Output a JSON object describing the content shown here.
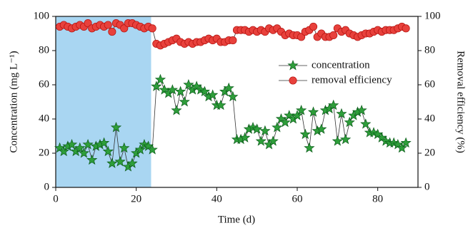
{
  "chart_data": {
    "type": "line",
    "x_label": "Time (d)",
    "y_label": "Concentration (mg L⁻¹)",
    "y2_label": "Removal efficiency (%)",
    "x": [
      1,
      2,
      3,
      4,
      5,
      6,
      7,
      8,
      9,
      10,
      11,
      12,
      13,
      14,
      15,
      16,
      17,
      18,
      19,
      20,
      21,
      22,
      23,
      24,
      25,
      26,
      27,
      28,
      29,
      30,
      31,
      32,
      33,
      34,
      35,
      36,
      37,
      38,
      39,
      40,
      41,
      42,
      43,
      44,
      45,
      46,
      47,
      48,
      49,
      50,
      51,
      52,
      53,
      54,
      55,
      56,
      57,
      58,
      59,
      60,
      61,
      62,
      63,
      64,
      65,
      66,
      67,
      68,
      69,
      70,
      71,
      72,
      73,
      74,
      75,
      76,
      77,
      78,
      79,
      80,
      81,
      82,
      83,
      84,
      85,
      86,
      87
    ],
    "series": [
      {
        "name": "concentration",
        "color": "#2e9e3a",
        "marker": "star",
        "values": [
          23,
          21,
          24,
          25,
          21,
          23,
          20,
          25,
          16,
          24,
          25,
          26,
          21,
          14,
          35,
          15,
          23,
          12,
          14,
          20,
          22,
          25,
          24,
          22,
          59,
          63,
          57,
          55,
          57,
          45,
          56,
          50,
          60,
          57,
          59,
          57,
          56,
          53,
          54,
          48,
          48,
          56,
          58,
          53,
          28,
          28,
          29,
          34,
          35,
          34,
          27,
          33,
          25,
          27,
          35,
          40,
          38,
          42,
          40,
          42,
          45,
          31,
          23,
          44,
          33,
          34,
          45,
          46,
          48,
          27,
          43,
          28,
          38,
          42,
          44,
          45,
          37,
          32,
          32,
          31,
          29,
          27,
          26,
          26,
          25,
          23,
          26
        ]
      },
      {
        "name": "removal efficiency",
        "color": "#e8413c",
        "marker": "circle",
        "axis": "y2",
        "values": [
          94,
          95,
          94,
          93,
          94,
          95,
          94,
          96,
          93,
          94,
          95,
          94,
          95,
          91,
          96,
          95,
          93,
          96,
          96,
          95,
          94,
          93,
          94,
          93,
          84,
          83,
          84,
          85,
          86,
          87,
          85,
          84,
          85,
          84,
          85,
          85,
          86,
          87,
          86,
          87,
          85,
          85,
          86,
          86,
          92,
          92,
          92,
          91,
          92,
          91,
          92,
          91,
          93,
          92,
          93,
          91,
          89,
          90,
          89,
          89,
          88,
          91,
          92,
          94,
          88,
          90,
          88,
          88,
          89,
          93,
          91,
          92,
          90,
          89,
          88,
          89,
          90,
          90,
          91,
          92,
          91,
          92,
          92,
          92,
          93,
          94,
          93
        ]
      }
    ],
    "xlim": [
      0,
      90
    ],
    "xticks": [
      0,
      20,
      40,
      60,
      80
    ],
    "ylim": [
      0,
      100
    ],
    "yticks": [
      0,
      20,
      40,
      60,
      80,
      100
    ],
    "y2lim": [
      0,
      100
    ],
    "y2ticks": [
      0,
      20,
      40,
      60,
      80,
      100
    ],
    "shaded_region": [
      0,
      23.7
    ],
    "shaded_color": "#a9d6f2",
    "legend": "center right"
  }
}
